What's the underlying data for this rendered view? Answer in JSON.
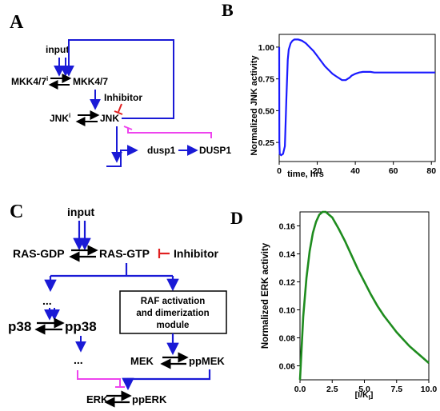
{
  "panels": {
    "A": {
      "letter": "A",
      "nodes": {
        "input": "input",
        "mkk_inactive": "MKK4/7",
        "mkk_inactive_sup": "i",
        "mkk_active": "MKK4/7",
        "inhibitor": "Inhibitor",
        "jnk_inactive": "JNK",
        "jnk_inactive_sup": "i",
        "jnk_active": "JNK",
        "dusp1_mrna": "dusp1",
        "dusp1_protein": "DUSP1"
      }
    },
    "B": {
      "letter": "B",
      "chart_data": {
        "type": "line",
        "xlabel": "time, hrs",
        "ylabel": "Normalized JNK activity",
        "xlim": [
          0,
          82
        ],
        "ylim": [
          0.1,
          1.1
        ],
        "xticks": [
          0,
          20,
          40,
          60,
          80
        ],
        "yticks": [
          0.25,
          0.5,
          0.75,
          1.0
        ],
        "xtick_labels": [
          "0",
          "20",
          "40",
          "60",
          "80"
        ],
        "ytick_labels": [
          "0.25",
          "0.50",
          "0.75",
          "1.00"
        ],
        "color": "#1a1aff",
        "x": [
          0,
          0.05,
          0.1,
          0.3,
          1,
          2,
          3,
          3.8,
          4.5,
          5,
          6,
          7,
          8,
          9,
          10,
          12,
          14,
          16,
          18,
          20,
          22,
          24,
          26,
          28,
          30,
          32,
          33,
          34,
          35,
          36,
          37,
          38,
          40,
          42,
          44,
          46,
          48,
          50,
          55,
          60,
          65,
          70,
          75,
          80,
          82
        ],
        "y": [
          1.0,
          0.6,
          0.25,
          0.16,
          0.15,
          0.16,
          0.22,
          0.6,
          0.9,
          0.98,
          1.03,
          1.05,
          1.06,
          1.06,
          1.06,
          1.05,
          1.03,
          1.0,
          0.97,
          0.93,
          0.89,
          0.85,
          0.82,
          0.79,
          0.77,
          0.75,
          0.74,
          0.74,
          0.74,
          0.75,
          0.76,
          0.775,
          0.79,
          0.8,
          0.805,
          0.805,
          0.805,
          0.8,
          0.8,
          0.8,
          0.8,
          0.8,
          0.8,
          0.8,
          0.8
        ]
      }
    },
    "C": {
      "letter": "C",
      "nodes": {
        "input": "input",
        "ras_gdp": "RAS-GDP",
        "ras_gtp": "RAS-GTP",
        "inhibitor": "Inhibitor",
        "raf_module_line1": "RAF activation",
        "raf_module_line2": "and dimerization",
        "raf_module_line3": "module",
        "ellipsis_top": "...",
        "p38": "p38",
        "pp38": "pp38",
        "ellipsis_bottom": "...",
        "mek": "MEK",
        "ppmek": "ppMEK",
        "erk": "ERK",
        "pperk": "ppERK"
      }
    },
    "D": {
      "letter": "D",
      "chart_data": {
        "type": "line",
        "xlabel": "[I/K",
        "xlabel_sub": "I",
        "xlabel_end": "]",
        "ylabel": "Normalized ERK activity",
        "xlim": [
          0,
          10
        ],
        "ylim": [
          0.05,
          0.17
        ],
        "xticks": [
          0,
          2.5,
          5,
          7.5,
          10
        ],
        "yticks": [
          0.06,
          0.08,
          0.1,
          0.12,
          0.14,
          0.16
        ],
        "xtick_labels": [
          "0.0",
          "2.5",
          "5.0",
          "7.5",
          "10.0"
        ],
        "ytick_labels": [
          "0.06",
          "0.08",
          "0.10",
          "0.12",
          "0.14",
          "0.16"
        ],
        "color": "#1e8c1e",
        "x": [
          0,
          0.25,
          0.5,
          0.75,
          1,
          1.25,
          1.5,
          1.75,
          2,
          2.25,
          2.5,
          3,
          3.5,
          4,
          4.5,
          5,
          5.5,
          6,
          6.5,
          7,
          7.5,
          8,
          8.5,
          9,
          9.5,
          10
        ],
        "y": [
          0.05,
          0.095,
          0.123,
          0.142,
          0.155,
          0.163,
          0.168,
          0.17,
          0.17,
          0.168,
          0.166,
          0.158,
          0.149,
          0.139,
          0.129,
          0.12,
          0.111,
          0.103,
          0.096,
          0.09,
          0.084,
          0.079,
          0.074,
          0.07,
          0.066,
          0.062
        ]
      }
    }
  }
}
